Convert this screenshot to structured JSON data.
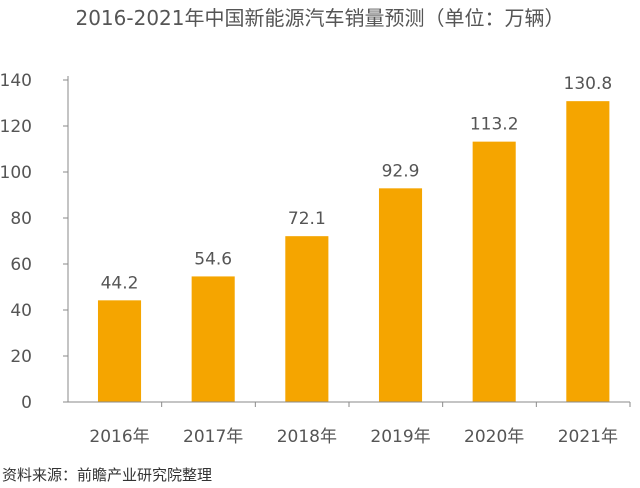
{
  "chart_data": {
    "type": "bar",
    "title": "2016-2021年中国新能源汽车销量预测（单位：万辆）",
    "categories": [
      "2016年",
      "2017年",
      "2018年",
      "2019年",
      "2020年",
      "2021年"
    ],
    "values": [
      44.2,
      54.6,
      72.1,
      92.9,
      113.2,
      130.8
    ],
    "data_labels": [
      "44.2",
      "54.6",
      "72.1",
      "92.9",
      "113.2",
      "130.8"
    ],
    "yticks": [
      0,
      20,
      40,
      60,
      80,
      100,
      120,
      140
    ],
    "ylim": [
      0,
      140
    ],
    "xlabel": "",
    "ylabel": "",
    "bar_color": "#F5A500",
    "grid": false,
    "legend": "none"
  },
  "footer": {
    "source": "资料来源：前瞻产业研究院整理"
  }
}
